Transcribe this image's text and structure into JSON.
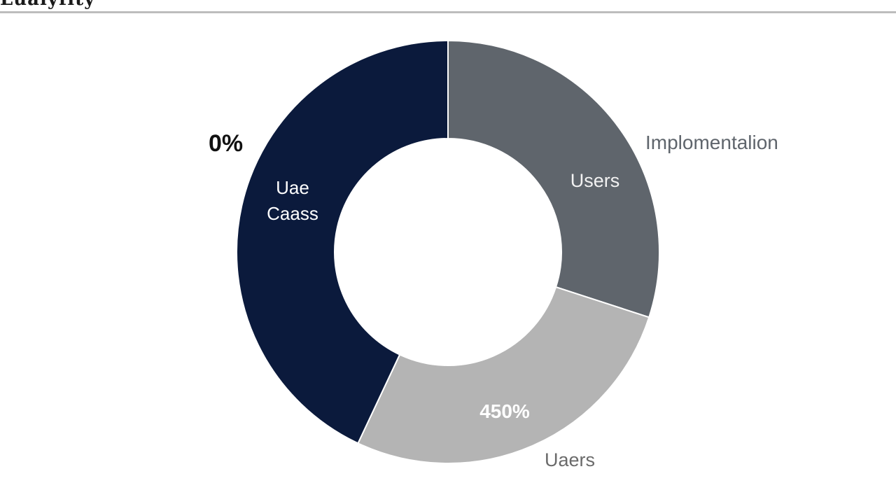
{
  "header": {
    "title": "Lualyfity"
  },
  "colors": {
    "use_cases": "#0b1a3c",
    "implementation": "#5f656c",
    "users": "#b4b4b4"
  },
  "chart_data": {
    "type": "pie",
    "variant": "donut",
    "slices": [
      {
        "key": "implementation",
        "label": "Users",
        "value": 30,
        "color": "#5f656c"
      },
      {
        "key": "users",
        "label": "",
        "value": 27,
        "color": "#b4b4b4"
      },
      {
        "key": "use_cases",
        "label": "Uae\nCaass",
        "value": 43,
        "color": "#0b1a3c"
      }
    ],
    "annotations": {
      "left_value": "0%",
      "right_label": "Implomentalion",
      "bottom_value": "450%",
      "bottom_label": "Uaers"
    },
    "legend": "none"
  }
}
